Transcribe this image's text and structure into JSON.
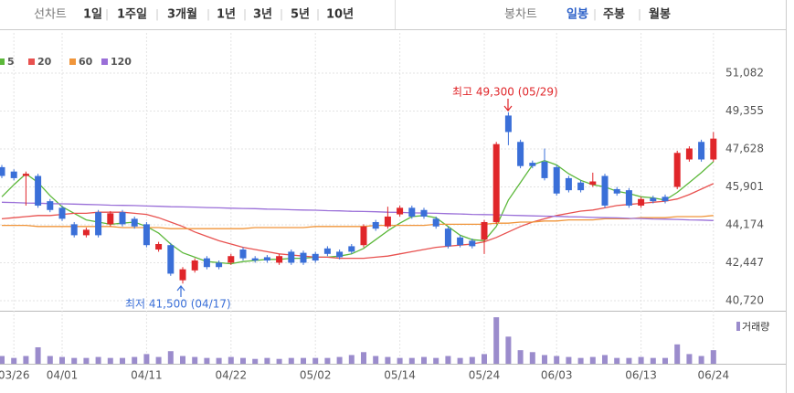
{
  "toolbar": {
    "line_chart": "선차트",
    "periods": [
      "1일",
      "1주일",
      "3개월",
      "1년",
      "3년",
      "5년",
      "10년"
    ],
    "candle_chart": "봉차트",
    "candle_periods": [
      "일봉",
      "주봉",
      "월봉"
    ]
  },
  "chart_data": {
    "type": "candlestick",
    "categories": [
      null,
      "03/26",
      null,
      null,
      null,
      "04/01",
      null,
      null,
      null,
      null,
      null,
      null,
      "04/11",
      null,
      null,
      null,
      null,
      null,
      null,
      "04/22",
      null,
      null,
      null,
      null,
      null,
      null,
      "05/02",
      null,
      null,
      null,
      null,
      null,
      null,
      "05/14",
      null,
      null,
      null,
      null,
      null,
      null,
      "05/24",
      null,
      null,
      null,
      null,
      null,
      "06/03",
      null,
      null,
      null,
      null,
      null,
      null,
      "06/13",
      null,
      null,
      null,
      null,
      null,
      "06/24"
    ],
    "open": [
      46800,
      46600,
      46400,
      46400,
      45250,
      44950,
      44200,
      43700,
      44750,
      44200,
      44750,
      44450,
      44200,
      43050,
      43250,
      41650,
      42100,
      42650,
      42450,
      42450,
      43050,
      42650,
      42700,
      42450,
      42950,
      42900,
      42850,
      43100,
      42950,
      43200,
      43250,
      44300,
      44100,
      44650,
      44950,
      44850,
      44450,
      44000,
      43600,
      43450,
      43500,
      44300,
      49150,
      47950,
      47000,
      47050,
      46800,
      46300,
      46100,
      46000,
      46400,
      45800,
      45750,
      45050,
      45400,
      45450,
      45900,
      47150,
      47950,
      47150
    ],
    "high": [
      46900,
      46700,
      46600,
      46500,
      45350,
      45050,
      44300,
      44050,
      44850,
      44800,
      44850,
      44550,
      44300,
      43400,
      43350,
      42250,
      42650,
      42750,
      42550,
      42850,
      43150,
      42750,
      42800,
      42850,
      43050,
      43000,
      42950,
      43200,
      43050,
      43300,
      44200,
      44400,
      45000,
      45050,
      45050,
      44950,
      44550,
      44100,
      43700,
      43550,
      44400,
      47950,
      49300,
      48050,
      47100,
      47650,
      46900,
      46400,
      46200,
      46550,
      46500,
      45900,
      45850,
      45450,
      45500,
      45550,
      47550,
      47750,
      48050,
      48400
    ],
    "low": [
      46300,
      46200,
      45050,
      44950,
      44750,
      44350,
      43600,
      43600,
      43600,
      44100,
      44100,
      44000,
      43150,
      42950,
      41850,
      41500,
      42000,
      42150,
      42150,
      42350,
      42550,
      42450,
      42450,
      42350,
      42350,
      42350,
      42450,
      42750,
      42600,
      42850,
      43150,
      43900,
      44000,
      44550,
      44450,
      44450,
      44000,
      43100,
      43150,
      43100,
      42850,
      44200,
      47800,
      46750,
      46750,
      46200,
      45500,
      45650,
      45650,
      45900,
      44950,
      45500,
      44950,
      44950,
      45150,
      45150,
      45800,
      47050,
      47050,
      47050
    ],
    "close": [
      46400,
      46300,
      46500,
      45050,
      44850,
      44450,
      43700,
      43950,
      43700,
      44700,
      44200,
      44100,
      43250,
      43300,
      41950,
      42150,
      42550,
      42250,
      42250,
      42750,
      42650,
      42550,
      42550,
      42750,
      42450,
      42450,
      42550,
      42850,
      42700,
      42950,
      44100,
      44000,
      44550,
      44950,
      44550,
      44550,
      44100,
      43200,
      43250,
      43200,
      44300,
      47850,
      48400,
      46850,
      46850,
      46300,
      45600,
      45750,
      45750,
      46150,
      45050,
      45600,
      45050,
      45350,
      45250,
      45250,
      47450,
      47650,
      47150,
      48100
    ],
    "up_color": "#e0262a",
    "down_color": "#3a6fd8",
    "moving_averages": [
      {
        "name": "5",
        "color": "#5cb83a",
        "values": [
          45450,
          46000,
          46500,
          46100,
          45500,
          45000,
          44700,
          44400,
          44300,
          44200,
          44250,
          44300,
          44100,
          43800,
          43300,
          42900,
          42700,
          42500,
          42450,
          42400,
          42500,
          42550,
          42600,
          42600,
          42650,
          42650,
          42700,
          42700,
          42750,
          42850,
          43100,
          43500,
          43900,
          44250,
          44550,
          44600,
          44500,
          44100,
          43700,
          43500,
          43450,
          44100,
          45300,
          46100,
          46900,
          47100,
          46900,
          46500,
          46200,
          46000,
          45900,
          45700,
          45600,
          45450,
          45400,
          45300,
          45650,
          46100,
          46550,
          47050
        ]
      },
      {
        "name": "20",
        "color": "#e8514f",
        "values": [
          44450,
          44500,
          44550,
          44600,
          44600,
          44650,
          44700,
          44700,
          44750,
          44750,
          44750,
          44700,
          44650,
          44500,
          44300,
          44100,
          43850,
          43650,
          43450,
          43300,
          43150,
          43050,
          42950,
          42850,
          42800,
          42750,
          42700,
          42700,
          42650,
          42650,
          42650,
          42700,
          42750,
          42850,
          42950,
          43050,
          43150,
          43200,
          43250,
          43300,
          43400,
          43600,
          43850,
          44100,
          44300,
          44450,
          44600,
          44700,
          44800,
          44850,
          44950,
          45050,
          45100,
          45150,
          45200,
          45250,
          45350,
          45550,
          45800,
          46050
        ]
      },
      {
        "name": "60",
        "color": "#f0953a",
        "values": [
          44150,
          44150,
          44150,
          44100,
          44100,
          44100,
          44100,
          44100,
          44100,
          44100,
          44050,
          44050,
          44050,
          44050,
          44000,
          44000,
          44000,
          44000,
          44000,
          44000,
          44000,
          44050,
          44050,
          44050,
          44050,
          44050,
          44100,
          44100,
          44100,
          44100,
          44100,
          44150,
          44150,
          44150,
          44150,
          44150,
          44200,
          44200,
          44200,
          44200,
          44200,
          44250,
          44250,
          44300,
          44300,
          44350,
          44350,
          44400,
          44400,
          44400,
          44450,
          44450,
          44450,
          44500,
          44500,
          44500,
          44550,
          44550,
          44550,
          44600
        ]
      },
      {
        "name": "120",
        "color": "#9a6fd8",
        "values": [
          45200,
          45190,
          45170,
          45160,
          45140,
          45130,
          45120,
          45100,
          45090,
          45070,
          45060,
          45050,
          45030,
          45020,
          45000,
          44990,
          44980,
          44960,
          44950,
          44930,
          44920,
          44910,
          44890,
          44880,
          44860,
          44850,
          44840,
          44820,
          44810,
          44790,
          44780,
          44770,
          44750,
          44740,
          44720,
          44710,
          44700,
          44680,
          44670,
          44650,
          44640,
          44630,
          44610,
          44600,
          44580,
          44570,
          44560,
          44540,
          44530,
          44510,
          44500,
          44490,
          44470,
          44460,
          44440,
          44430,
          44420,
          44400,
          44390,
          44370
        ]
      }
    ],
    "volume": {
      "name": "거래량",
      "color": "#9b8ccc",
      "ylim": [
        0,
        50
      ],
      "values": [
        8,
        6,
        8,
        17,
        8,
        7,
        6,
        6,
        7,
        6,
        6,
        7,
        10,
        7,
        13,
        8,
        7,
        6,
        6,
        7,
        6,
        5,
        6,
        5,
        6,
        6,
        6,
        6,
        7,
        9,
        12,
        8,
        7,
        6,
        6,
        7,
        6,
        8,
        6,
        7,
        10,
        48,
        28,
        14,
        12,
        9,
        8,
        7,
        6,
        7,
        9,
        6,
        6,
        7,
        6,
        6,
        20,
        10,
        8,
        14
      ]
    },
    "ylim": [
      40720,
      51082
    ],
    "yticks": [
      {
        "value": 51082,
        "label": "51,082"
      },
      {
        "value": 49355,
        "label": "49,355"
      },
      {
        "value": 47628,
        "label": "47,628"
      },
      {
        "value": 45901,
        "label": "45,901"
      },
      {
        "value": 44174,
        "label": "44,174"
      },
      {
        "value": 42447,
        "label": "42,447"
      },
      {
        "value": 40720,
        "label": "40,720"
      }
    ],
    "grid": true,
    "annotations": [
      {
        "text": "최고 49,300 (05/29)",
        "color": "#e0262a"
      },
      {
        "text": "최저 41,500 (04/17)",
        "color": "#3a6fd8"
      }
    ]
  }
}
